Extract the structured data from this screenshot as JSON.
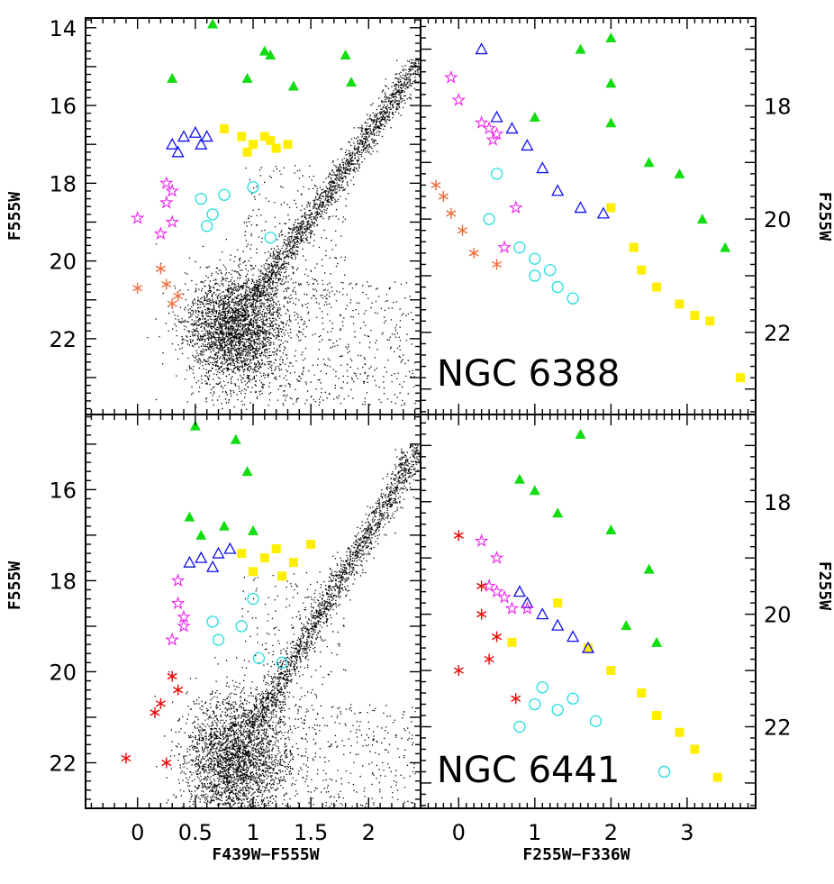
{
  "colors": {
    "rgb_stars": "#000000",
    "ehb_asterisk_6388": "#ee6a3a",
    "ehb_asterisk_6441": "#ee0000",
    "bhb_star": "#ee22ee",
    "bhb_triangle": "#1010ee",
    "rhb_square": "#ffee00",
    "rr_lyrae_circle": "#22dddd",
    "agb_triangle": "#11dd11"
  },
  "axes": {
    "x_label_left": "F439W−F555W",
    "x_label_right": "F255W−F336W",
    "y_label_left_top": "F555W",
    "y_label_left_bottom": "F555W",
    "y_label_right_top": "F255W",
    "y_label_right_bottom": "F255W"
  },
  "chart_data": [
    {
      "panel": "NGC 6388 optical CMD",
      "type": "scatter",
      "xlim": [
        -0.45,
        2.45
      ],
      "ylim": [
        23.95,
        13.75
      ],
      "x_ticks": [
        0,
        0.5,
        1,
        1.5,
        2
      ],
      "y_ticks": [
        14,
        16,
        18,
        20,
        22
      ],
      "series": [
        {
          "kind": "agb_triangle",
          "points": [
            [
              0.65,
              13.9
            ],
            [
              1.1,
              14.6
            ],
            [
              1.8,
              14.7
            ],
            [
              0.3,
              15.3
            ],
            [
              0.95,
              15.3
            ],
            [
              1.15,
              14.7
            ],
            [
              1.35,
              15.5
            ],
            [
              1.85,
              15.4
            ]
          ]
        },
        {
          "kind": "rhb_square",
          "points": [
            [
              0.75,
              16.6
            ],
            [
              0.9,
              16.8
            ],
            [
              1.0,
              17.0
            ],
            [
              1.1,
              16.8
            ],
            [
              1.2,
              17.1
            ],
            [
              0.95,
              17.2
            ],
            [
              1.15,
              16.9
            ],
            [
              1.3,
              17.0
            ]
          ]
        },
        {
          "kind": "bhb_triangle",
          "points": [
            [
              0.3,
              17.0
            ],
            [
              0.4,
              16.8
            ],
            [
              0.5,
              16.7
            ],
            [
              0.6,
              16.8
            ],
            [
              0.35,
              17.2
            ],
            [
              0.55,
              17.0
            ]
          ]
        },
        {
          "kind": "bhb_star",
          "points": [
            [
              0.25,
              18.0
            ],
            [
              0.25,
              18.5
            ],
            [
              0.3,
              19.0
            ],
            [
              0.2,
              19.3
            ],
            [
              0.3,
              18.2
            ],
            [
              0.0,
              18.9
            ]
          ]
        },
        {
          "kind": "rr_lyrae_circle",
          "points": [
            [
              0.55,
              18.4
            ],
            [
              0.65,
              18.8
            ],
            [
              0.6,
              19.1
            ],
            [
              0.75,
              18.3
            ],
            [
              1.0,
              18.1
            ],
            [
              1.15,
              19.4
            ]
          ]
        },
        {
          "kind": "ehb_asterisk_6388",
          "points": [
            [
              0.2,
              20.2
            ],
            [
              0.25,
              20.6
            ],
            [
              0.3,
              21.1
            ],
            [
              0.35,
              20.9
            ],
            [
              0.0,
              20.7
            ]
          ]
        }
      ]
    },
    {
      "panel": "NGC 6388 UV CMD",
      "type": "scatter",
      "cluster_label": "NGC 6388",
      "xlim": [
        -0.5,
        3.9
      ],
      "ylim": [
        23.45,
        16.45
      ],
      "x_ticks": [
        0,
        1,
        2,
        3
      ],
      "y_ticks": [
        18,
        20,
        22
      ],
      "series": [
        {
          "kind": "agb_triangle",
          "points": [
            [
              2.0,
              16.8
            ],
            [
              1.6,
              17.0
            ],
            [
              2.0,
              17.6
            ],
            [
              2.0,
              18.3
            ],
            [
              2.5,
              19.0
            ],
            [
              2.9,
              19.2
            ],
            [
              3.2,
              20.0
            ],
            [
              3.5,
              20.5
            ],
            [
              1.0,
              18.2
            ]
          ]
        },
        {
          "kind": "rhb_square",
          "points": [
            [
              2.0,
              19.8
            ],
            [
              2.3,
              20.5
            ],
            [
              2.4,
              20.9
            ],
            [
              2.6,
              21.2
            ],
            [
              2.9,
              21.5
            ],
            [
              3.1,
              21.7
            ],
            [
              3.3,
              21.8
            ],
            [
              3.7,
              22.8
            ]
          ]
        },
        {
          "kind": "bhb_triangle",
          "points": [
            [
              0.5,
              18.2
            ],
            [
              0.7,
              18.4
            ],
            [
              0.9,
              18.7
            ],
            [
              1.1,
              19.1
            ],
            [
              1.3,
              19.5
            ],
            [
              1.6,
              19.8
            ],
            [
              1.9,
              19.9
            ],
            [
              0.3,
              17.0
            ]
          ]
        },
        {
          "kind": "bhb_star",
          "points": [
            [
              0.3,
              18.3
            ],
            [
              0.4,
              18.4
            ],
            [
              0.45,
              18.6
            ],
            [
              0.5,
              18.5
            ],
            [
              -0.1,
              17.5
            ],
            [
              0.0,
              17.9
            ],
            [
              0.6,
              20.5
            ],
            [
              0.75,
              19.8
            ]
          ]
        },
        {
          "kind": "rr_lyrae_circle",
          "points": [
            [
              0.8,
              20.5
            ],
            [
              1.0,
              20.7
            ],
            [
              1.2,
              20.9
            ],
            [
              1.3,
              21.2
            ],
            [
              1.5,
              21.4
            ],
            [
              0.4,
              20.0
            ],
            [
              0.5,
              19.2
            ],
            [
              1.0,
              21.0
            ]
          ]
        },
        {
          "kind": "ehb_asterisk_6388",
          "points": [
            [
              -0.2,
              19.6
            ],
            [
              -0.1,
              19.9
            ],
            [
              0.05,
              20.2
            ],
            [
              0.2,
              20.6
            ],
            [
              0.5,
              20.8
            ],
            [
              -0.3,
              19.4
            ]
          ]
        }
      ]
    },
    {
      "panel": "NGC 6441 optical CMD",
      "type": "scatter",
      "xlim": [
        -0.45,
        2.45
      ],
      "ylim": [
        23.0,
        14.35
      ],
      "x_ticks": [
        0,
        0.5,
        1,
        1.5,
        2
      ],
      "y_ticks": [
        16,
        18,
        20,
        22
      ],
      "series": [
        {
          "kind": "agb_triangle",
          "points": [
            [
              0.5,
              14.6
            ],
            [
              0.85,
              14.9
            ],
            [
              0.95,
              15.6
            ],
            [
              0.45,
              16.6
            ],
            [
              0.55,
              17.0
            ],
            [
              0.75,
              16.8
            ],
            [
              1.0,
              16.9
            ]
          ]
        },
        {
          "kind": "rhb_square",
          "points": [
            [
              0.9,
              17.4
            ],
            [
              1.1,
              17.5
            ],
            [
              1.2,
              17.3
            ],
            [
              1.35,
              17.6
            ],
            [
              1.5,
              17.2
            ],
            [
              1.0,
              17.8
            ],
            [
              1.25,
              17.9
            ]
          ]
        },
        {
          "kind": "bhb_triangle",
          "points": [
            [
              0.45,
              17.6
            ],
            [
              0.55,
              17.5
            ],
            [
              0.7,
              17.4
            ],
            [
              0.8,
              17.3
            ],
            [
              0.65,
              17.7
            ]
          ]
        },
        {
          "kind": "bhb_star",
          "points": [
            [
              0.35,
              18.0
            ],
            [
              0.35,
              18.5
            ],
            [
              0.4,
              19.0
            ],
            [
              0.3,
              19.3
            ],
            [
              0.4,
              18.8
            ]
          ]
        },
        {
          "kind": "rr_lyrae_circle",
          "points": [
            [
              0.65,
              18.9
            ],
            [
              0.7,
              19.3
            ],
            [
              0.9,
              19.0
            ],
            [
              1.05,
              19.7
            ],
            [
              1.25,
              19.8
            ],
            [
              1.0,
              18.4
            ]
          ]
        },
        {
          "kind": "ehb_asterisk_6441",
          "points": [
            [
              0.3,
              20.1
            ],
            [
              0.35,
              20.4
            ],
            [
              0.2,
              20.7
            ],
            [
              0.15,
              20.9
            ],
            [
              -0.1,
              21.9
            ],
            [
              0.25,
              22.0
            ]
          ]
        }
      ]
    },
    {
      "panel": "NGC 6441 UV CMD",
      "type": "scatter",
      "cluster_label": "NGC 6441",
      "xlim": [
        -0.5,
        3.9
      ],
      "ylim": [
        23.45,
        16.45
      ],
      "x_ticks": [
        0,
        1,
        2,
        3
      ],
      "y_ticks": [
        18,
        20,
        22
      ],
      "series": [
        {
          "kind": "agb_triangle",
          "points": [
            [
              1.6,
              16.8
            ],
            [
              0.8,
              17.6
            ],
            [
              1.0,
              17.8
            ],
            [
              1.3,
              18.2
            ],
            [
              2.0,
              18.5
            ],
            [
              2.5,
              19.2
            ],
            [
              2.2,
              20.2
            ],
            [
              2.6,
              20.5
            ]
          ]
        },
        {
          "kind": "rhb_square",
          "points": [
            [
              1.3,
              19.8
            ],
            [
              1.7,
              20.6
            ],
            [
              2.0,
              21.0
            ],
            [
              2.4,
              21.4
            ],
            [
              2.6,
              21.8
            ],
            [
              2.9,
              22.1
            ],
            [
              3.1,
              22.4
            ],
            [
              3.4,
              22.9
            ],
            [
              0.7,
              20.5
            ]
          ]
        },
        {
          "kind": "bhb_triangle",
          "points": [
            [
              0.9,
              19.8
            ],
            [
              1.1,
              20.0
            ],
            [
              1.3,
              20.2
            ],
            [
              1.5,
              20.4
            ],
            [
              1.7,
              20.6
            ],
            [
              0.8,
              19.6
            ]
          ]
        },
        {
          "kind": "bhb_star",
          "points": [
            [
              0.6,
              19.7
            ],
            [
              0.7,
              19.9
            ],
            [
              0.5,
              19.6
            ],
            [
              0.4,
              19.5
            ],
            [
              0.3,
              18.7
            ],
            [
              0.5,
              19.0
            ],
            [
              0.9,
              19.9
            ]
          ]
        },
        {
          "kind": "rr_lyrae_circle",
          "points": [
            [
              1.1,
              21.3
            ],
            [
              1.3,
              21.7
            ],
            [
              1.5,
              21.5
            ],
            [
              1.8,
              21.9
            ],
            [
              0.8,
              22.0
            ],
            [
              2.7,
              22.8
            ],
            [
              1.0,
              21.6
            ]
          ]
        },
        {
          "kind": "ehb_asterisk_6441",
          "points": [
            [
              0.0,
              18.6
            ],
            [
              0.3,
              19.5
            ],
            [
              0.3,
              20.0
            ],
            [
              0.5,
              20.4
            ],
            [
              0.4,
              20.8
            ],
            [
              0.0,
              21.0
            ],
            [
              0.75,
              21.5
            ]
          ]
        }
      ]
    }
  ]
}
